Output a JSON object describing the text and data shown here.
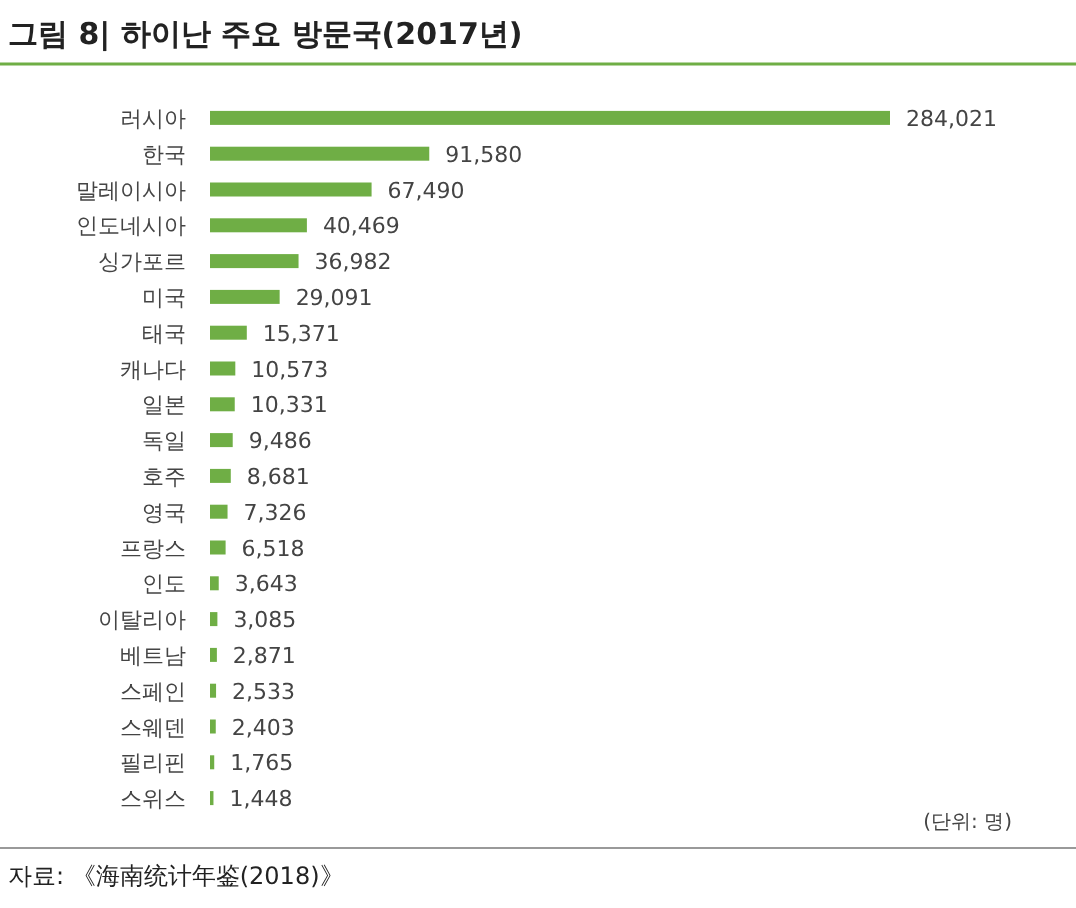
{
  "chart_data": {
    "type": "bar",
    "orientation": "horizontal",
    "title": "그림 8| 하이난 주요 방문국(2017년)",
    "categories": [
      "러시아",
      "한국",
      "말레이시아",
      "인도네시아",
      "싱가포르",
      "미국",
      "태국",
      "캐나다",
      "일본",
      "독일",
      "호주",
      "영국",
      "프랑스",
      "인도",
      "이탈리아",
      "베트남",
      "스페인",
      "스웨덴",
      "필리핀",
      "스위스"
    ],
    "values": [
      284021,
      91580,
      67490,
      40469,
      36982,
      29091,
      15371,
      10573,
      10331,
      9486,
      8681,
      7326,
      6518,
      3643,
      3085,
      2871,
      2533,
      2403,
      1765,
      1448
    ],
    "color": "#6fae45",
    "value_labels": [
      "284,021",
      "91,580",
      "67,490",
      "40,469",
      "36,982",
      "29,091",
      "15,371",
      "10,573",
      "10,331",
      "9,486",
      "8,681",
      "7,326",
      "6,518",
      "3,643",
      "3,085",
      "2,871",
      "2,533",
      "2,403",
      "1,765",
      "1,448"
    ],
    "annotations": [
      "(단위: 명)",
      "자료: 《海南统计年鉴(2018)》"
    ]
  }
}
